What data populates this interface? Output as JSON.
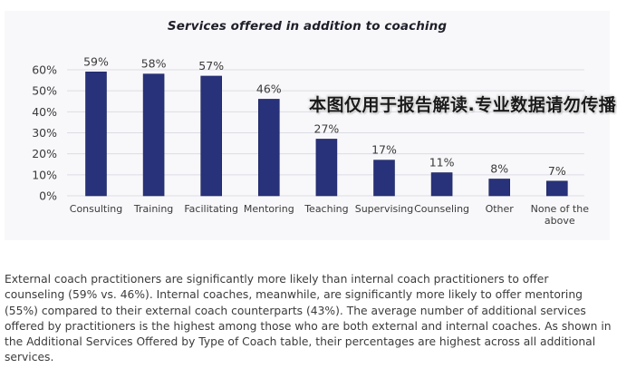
{
  "chart_data": {
    "type": "bar",
    "title": "Services offered in addition to coaching",
    "xlabel": "",
    "ylabel": "",
    "categories": [
      "Consulting",
      "Training",
      "Facilitating",
      "Mentoring",
      "Teaching",
      "Supervising",
      "Counseling",
      "Other",
      "None of the above"
    ],
    "category_lines": [
      [
        "Consulting"
      ],
      [
        "Training"
      ],
      [
        "Facilitating"
      ],
      [
        "Mentoring"
      ],
      [
        "Teaching"
      ],
      [
        "Supervising"
      ],
      [
        "Counseling"
      ],
      [
        "Other"
      ],
      [
        "None of the",
        "above"
      ]
    ],
    "values": [
      59,
      58,
      57,
      46,
      27,
      17,
      11,
      8,
      7
    ],
    "data_labels": [
      "59%",
      "58%",
      "57%",
      "46%",
      "27%",
      "17%",
      "11%",
      "8%",
      "7%"
    ],
    "ylim": [
      0,
      60
    ],
    "yticks": [
      0,
      10,
      20,
      30,
      40,
      50,
      60
    ],
    "ytick_labels": [
      "0%",
      "10%",
      "20%",
      "30%",
      "40%",
      "50%",
      "60%"
    ],
    "grid": true,
    "legend": "none",
    "bar_color": "#28327a"
  },
  "watermark": "本图仅用于报告解读.专业数据请勿传播",
  "body_paragraph": "External coach practitioners are significantly more likely than internal coach practitioners to offer counseling (59% vs. 46%). Internal coaches, meanwhile, are significantly more likely to offer mentoring (55%) compared to their external coach counterparts (43%). The average number of additional services offered by practitioners is the highest among those who are both external and internal coaches. As shown in the Additional Services Offered by Type of Coach table, their percentages are highest across all additional services."
}
